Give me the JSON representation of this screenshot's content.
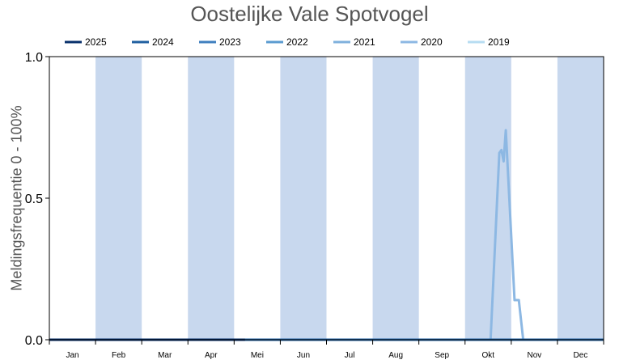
{
  "chart_data": {
    "type": "line",
    "title": "Oostelijke Vale Spotvogel",
    "ylabel": "Meldingsfrequentie 0 - 100%",
    "xlabel": "",
    "ylim": [
      0,
      1
    ],
    "yticks": [
      "0.0",
      "0.5",
      "1.0"
    ],
    "months": [
      "Jan",
      "Feb",
      "Mar",
      "Apr",
      "Mei",
      "Jun",
      "Jul",
      "Aug",
      "Sep",
      "Okt",
      "Nov",
      "Dec"
    ],
    "shaded_months": [
      "Feb",
      "Apr",
      "Jun",
      "Aug",
      "Okt",
      "Dec"
    ],
    "shade_color": "#c8d8ee",
    "legend_position": "top",
    "series": [
      {
        "name": "2025",
        "color": "#08306b",
        "points": [
          [
            1,
            0
          ],
          [
            19,
            0
          ]
        ]
      },
      {
        "name": "2024",
        "color": "#1f5fa0",
        "points": [
          [
            1,
            0
          ],
          [
            52,
            0
          ]
        ]
      },
      {
        "name": "2023",
        "color": "#3f7fbf",
        "points": [
          [
            1,
            0
          ],
          [
            52,
            0
          ]
        ]
      },
      {
        "name": "2022",
        "color": "#5b9bd0",
        "points": [
          [
            1,
            0
          ],
          [
            52,
            0
          ]
        ]
      },
      {
        "name": "2021",
        "color": "#7fb0dc",
        "points": [
          [
            1,
            0
          ],
          [
            52,
            0
          ]
        ]
      },
      {
        "name": "2020",
        "color": "#8db8e3",
        "points": [
          [
            1,
            0
          ],
          [
            41.6,
            0
          ],
          [
            42.4,
            0.66
          ],
          [
            42.6,
            0.67
          ],
          [
            42.8,
            0.63
          ],
          [
            43.0,
            0.74
          ],
          [
            43.8,
            0.14
          ],
          [
            44.2,
            0.14
          ],
          [
            44.6,
            0
          ],
          [
            52,
            0
          ]
        ]
      },
      {
        "name": "2019",
        "color": "#b7dcf2",
        "points": [
          [
            1,
            0
          ],
          [
            52,
            0
          ]
        ]
      }
    ]
  }
}
